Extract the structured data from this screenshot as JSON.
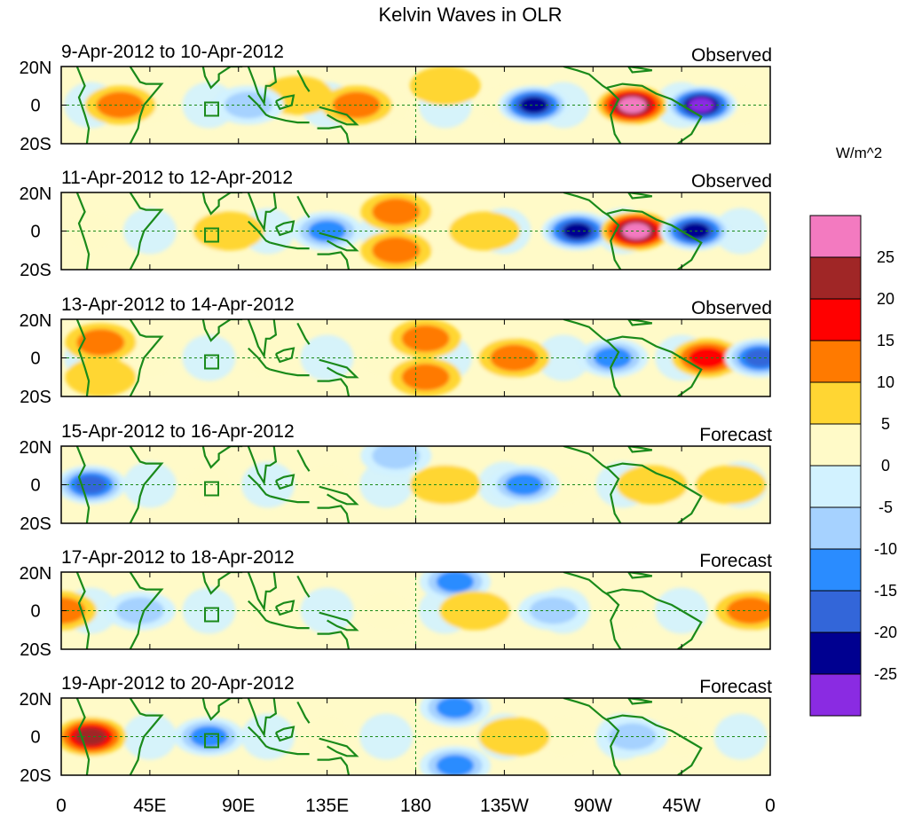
{
  "chart_data": {
    "type": "heatmap",
    "title": "Kelvin Waves in OLR",
    "units": "W/m^2",
    "y_ticks": [
      "20N",
      "0",
      "20S"
    ],
    "x_ticks": [
      "0",
      "45E",
      "90E",
      "135E",
      "180",
      "135W",
      "90W",
      "45W",
      "0"
    ],
    "colorbar": {
      "tick_labels": [
        "25",
        "20",
        "15",
        "10",
        "5",
        "0",
        "-5",
        "-10",
        "-15",
        "-20",
        "-25"
      ],
      "colors": [
        "#f37ac0",
        "#a02626",
        "#ff0000",
        "#ff7a00",
        "#ffd633",
        "#fffac8",
        "#d2f2ff",
        "#a6d2ff",
        "#2a8cff",
        "#3366d9",
        "#000090",
        "#8a2be2"
      ]
    },
    "panels": [
      {
        "date": "9-Apr-2012 to 10-Apr-2012",
        "type": "Observed",
        "anomalies": [
          {
            "lon": 30,
            "lat": 0,
            "value": 12
          },
          {
            "lon": 150,
            "lat": 0,
            "value": 14
          },
          {
            "lon": 120,
            "lat": 5,
            "value": 8
          },
          {
            "lon": 240,
            "lat": 0,
            "value": -22
          },
          {
            "lon": 290,
            "lat": 0,
            "value": 26
          },
          {
            "lon": 325,
            "lat": 0,
            "value": -27
          },
          {
            "lon": 95,
            "lat": 0,
            "value": -10
          },
          {
            "lon": 195,
            "lat": 10,
            "value": 5
          }
        ]
      },
      {
        "date": "11-Apr-2012 to 12-Apr-2012",
        "type": "Observed",
        "anomalies": [
          {
            "lon": 170,
            "lat": 10,
            "value": 12
          },
          {
            "lon": 170,
            "lat": -10,
            "value": 10
          },
          {
            "lon": 135,
            "lat": 0,
            "value": -12
          },
          {
            "lon": 85,
            "lat": 0,
            "value": 8
          },
          {
            "lon": 262,
            "lat": 0,
            "value": -22
          },
          {
            "lon": 292,
            "lat": 0,
            "value": 25
          },
          {
            "lon": 322,
            "lat": 0,
            "value": -21
          },
          {
            "lon": 215,
            "lat": 0,
            "value": 5
          }
        ]
      },
      {
        "date": "13-Apr-2012 to 14-Apr-2012",
        "type": "Observed",
        "anomalies": [
          {
            "lon": 185,
            "lat": 10,
            "value": 12
          },
          {
            "lon": 185,
            "lat": -10,
            "value": 12
          },
          {
            "lon": 230,
            "lat": 0,
            "value": 11
          },
          {
            "lon": 280,
            "lat": 0,
            "value": -14
          },
          {
            "lon": 328,
            "lat": 0,
            "value": 18
          },
          {
            "lon": 355,
            "lat": 0,
            "value": -18
          },
          {
            "lon": 20,
            "lat": 8,
            "value": 10
          },
          {
            "lon": 20,
            "lat": -10,
            "value": 8
          }
        ]
      },
      {
        "date": "15-Apr-2012 to 16-Apr-2012",
        "type": "Forecast",
        "anomalies": [
          {
            "lon": 15,
            "lat": 0,
            "value": -20
          },
          {
            "lon": 195,
            "lat": 0,
            "value": 6
          },
          {
            "lon": 235,
            "lat": 0,
            "value": -12
          },
          {
            "lon": 170,
            "lat": 15,
            "value": -10
          },
          {
            "lon": 300,
            "lat": 0,
            "value": 6
          },
          {
            "lon": 340,
            "lat": 0,
            "value": 8
          }
        ]
      },
      {
        "date": "17-Apr-2012 to 18-Apr-2012",
        "type": "Forecast",
        "anomalies": [
          {
            "lon": 0,
            "lat": 0,
            "value": 14
          },
          {
            "lon": 40,
            "lat": 0,
            "value": -10
          },
          {
            "lon": 200,
            "lat": 15,
            "value": -13
          },
          {
            "lon": 210,
            "lat": 0,
            "value": 6
          },
          {
            "lon": 350,
            "lat": 0,
            "value": 13
          },
          {
            "lon": 250,
            "lat": 0,
            "value": -6
          }
        ]
      },
      {
        "date": "19-Apr-2012 to 20-Apr-2012",
        "type": "Forecast",
        "anomalies": [
          {
            "lon": 15,
            "lat": 0,
            "value": 22
          },
          {
            "lon": 75,
            "lat": 0,
            "value": -12
          },
          {
            "lon": 200,
            "lat": 15,
            "value": -11
          },
          {
            "lon": 200,
            "lat": -15,
            "value": -11
          },
          {
            "lon": 230,
            "lat": 0,
            "value": 7
          },
          {
            "lon": 290,
            "lat": 0,
            "value": -6
          }
        ]
      }
    ]
  }
}
